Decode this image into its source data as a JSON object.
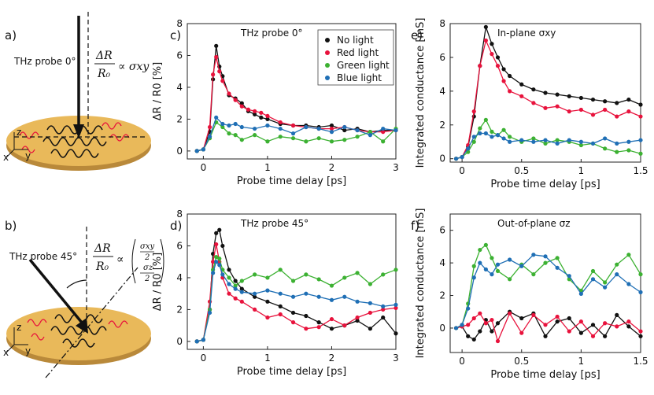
{
  "colors": {
    "black": "#111111",
    "red": "#e8123c",
    "green": "#3cb132",
    "blue": "#1f6fb5",
    "disk": "#e9b95a",
    "disk_edge": "#b9893a"
  },
  "panels": {
    "a": "a)",
    "b": "b)",
    "c": "c)",
    "d": "d)",
    "e": "e)",
    "f": "f)"
  },
  "schematic": {
    "a_probe": "THz probe 0°",
    "b_probe": "THz probe 45°",
    "a_formula": "ΔR/R₀ ∝ σxy",
    "b_formula": "ΔR/R₀ ∝ (σxy/2, σz/2)",
    "axis_z": "z",
    "axis_x": "x",
    "axis_y": "y"
  },
  "chart_data": [
    {
      "id": "c",
      "type": "line",
      "title": "THz probe 0°",
      "xlabel": "Probe time delay [ps]",
      "ylabel": "ΔR / R0 [%]",
      "xlim": [
        -0.25,
        3
      ],
      "ylim": [
        -0.5,
        8
      ],
      "xticks": [
        "0",
        "1",
        "2",
        "3"
      ],
      "yticks": [
        "0",
        "2",
        "4",
        "6",
        "8"
      ],
      "legend": [
        "No light",
        "Red light",
        "Green light",
        "Blue light"
      ],
      "series": [
        {
          "name": "No light",
          "color": "black",
          "x": [
            -0.1,
            0,
            0.1,
            0.15,
            0.2,
            0.25,
            0.3,
            0.4,
            0.5,
            0.6,
            0.7,
            0.8,
            0.9,
            1.0,
            1.2,
            1.4,
            1.6,
            1.8,
            2.0,
            2.2,
            2.4,
            2.6,
            2.8,
            3.0
          ],
          "y": [
            0,
            0.1,
            1.2,
            4.5,
            6.6,
            5.3,
            4.7,
            3.5,
            3.3,
            3.0,
            2.5,
            2.3,
            2.1,
            2.0,
            1.7,
            1.6,
            1.6,
            1.5,
            1.6,
            1.3,
            1.4,
            1.2,
            1.3,
            1.3
          ]
        },
        {
          "name": "Red light",
          "color": "red",
          "x": [
            -0.1,
            0,
            0.1,
            0.15,
            0.2,
            0.25,
            0.3,
            0.4,
            0.5,
            0.6,
            0.7,
            0.8,
            0.9,
            1.0,
            1.2,
            1.4,
            1.6,
            1.8,
            2.0,
            2.2,
            2.4,
            2.6,
            2.8,
            3.0
          ],
          "y": [
            0,
            0.1,
            1.5,
            4.8,
            5.9,
            5.0,
            4.4,
            3.6,
            3.2,
            2.8,
            2.6,
            2.5,
            2.4,
            2.2,
            1.8,
            1.6,
            1.5,
            1.4,
            1.4,
            1.5,
            1.3,
            1.2,
            1.2,
            1.3
          ]
        },
        {
          "name": "Green light",
          "color": "green",
          "x": [
            -0.1,
            0,
            0.1,
            0.2,
            0.3,
            0.4,
            0.5,
            0.6,
            0.8,
            1.0,
            1.2,
            1.4,
            1.6,
            1.8,
            2.0,
            2.2,
            2.4,
            2.6,
            2.8,
            3.0
          ],
          "y": [
            0,
            0.1,
            0.8,
            1.8,
            1.5,
            1.1,
            1.0,
            0.7,
            1.0,
            0.6,
            0.9,
            0.8,
            0.6,
            0.8,
            0.6,
            0.7,
            0.9,
            1.2,
            0.6,
            1.4
          ]
        },
        {
          "name": "Blue light",
          "color": "blue",
          "x": [
            -0.1,
            0,
            0.1,
            0.2,
            0.3,
            0.4,
            0.5,
            0.6,
            0.8,
            1.0,
            1.2,
            1.4,
            1.6,
            1.8,
            2.0,
            2.2,
            2.4,
            2.6,
            2.8,
            3.0
          ],
          "y": [
            0,
            0.1,
            0.9,
            2.1,
            1.7,
            1.6,
            1.7,
            1.5,
            1.4,
            1.6,
            1.4,
            1.1,
            1.5,
            1.4,
            1.2,
            1.5,
            1.3,
            1.0,
            1.4,
            1.3
          ]
        }
      ]
    },
    {
      "id": "d",
      "type": "line",
      "title": "THz probe 45°",
      "xlabel": "Probe time delay [ps]",
      "ylabel": "ΔR / R0 [%]",
      "xlim": [
        -0.25,
        3
      ],
      "ylim": [
        -0.5,
        8
      ],
      "xticks": [
        "0",
        "1",
        "2",
        "3"
      ],
      "yticks": [
        "0",
        "2",
        "4",
        "6",
        "8"
      ],
      "series": [
        {
          "name": "No light",
          "color": "black",
          "x": [
            -0.1,
            0,
            0.1,
            0.15,
            0.2,
            0.25,
            0.3,
            0.4,
            0.5,
            0.6,
            0.8,
            1.0,
            1.2,
            1.4,
            1.6,
            1.8,
            2.0,
            2.2,
            2.4,
            2.6,
            2.8,
            3.0
          ],
          "y": [
            0,
            0.1,
            2.0,
            5.5,
            6.8,
            7.0,
            6.0,
            4.5,
            3.8,
            3.3,
            2.8,
            2.5,
            2.2,
            1.8,
            1.6,
            1.2,
            0.8,
            1.0,
            1.3,
            0.8,
            1.5,
            0.5
          ]
        },
        {
          "name": "Red light",
          "color": "red",
          "x": [
            -0.1,
            0,
            0.1,
            0.15,
            0.2,
            0.25,
            0.3,
            0.4,
            0.5,
            0.6,
            0.8,
            1.0,
            1.2,
            1.4,
            1.6,
            1.8,
            2.0,
            2.2,
            2.4,
            2.6,
            2.8,
            3.0
          ],
          "y": [
            0,
            0.1,
            2.5,
            5.0,
            6.1,
            5.0,
            4.0,
            3.0,
            2.7,
            2.5,
            2.0,
            1.5,
            1.7,
            1.2,
            0.8,
            0.9,
            1.4,
            1.0,
            1.5,
            1.8,
            2.0,
            2.1
          ]
        },
        {
          "name": "Green light",
          "color": "green",
          "x": [
            -0.1,
            0,
            0.1,
            0.15,
            0.2,
            0.25,
            0.3,
            0.4,
            0.5,
            0.6,
            0.8,
            1.0,
            1.2,
            1.4,
            1.6,
            1.8,
            2.0,
            2.2,
            2.4,
            2.6,
            2.8,
            3.0
          ],
          "y": [
            0,
            0.1,
            2.0,
            4.5,
            5.3,
            5.2,
            4.5,
            4.0,
            3.5,
            3.8,
            4.2,
            4.0,
            4.5,
            3.8,
            4.2,
            3.9,
            3.5,
            4.0,
            4.3,
            3.6,
            4.2,
            4.5
          ]
        },
        {
          "name": "Blue light",
          "color": "blue",
          "x": [
            -0.1,
            0,
            0.1,
            0.15,
            0.2,
            0.25,
            0.3,
            0.4,
            0.5,
            0.6,
            0.8,
            1.0,
            1.2,
            1.4,
            1.6,
            1.8,
            2.0,
            2.2,
            2.4,
            2.6,
            2.8,
            3.0
          ],
          "y": [
            0,
            0.1,
            1.8,
            4.3,
            5.0,
            4.8,
            4.2,
            3.6,
            3.3,
            3.1,
            3.0,
            3.2,
            3.0,
            2.8,
            3.0,
            2.8,
            2.6,
            2.8,
            2.5,
            2.4,
            2.2,
            2.3
          ]
        }
      ]
    },
    {
      "id": "e",
      "type": "line",
      "title": "In-plane σxy",
      "xlabel": "Probe time delay [ps]",
      "ylabel": "Integrated conductance [mS]",
      "xlim": [
        -0.1,
        1.5
      ],
      "ylim": [
        -0.2,
        8
      ],
      "xticks": [
        "0",
        "0.5",
        "1",
        "1.5"
      ],
      "yticks": [
        "0",
        "2",
        "4",
        "6",
        "8"
      ],
      "series": [
        {
          "name": "No light",
          "color": "black",
          "x": [
            -0.05,
            0,
            0.05,
            0.1,
            0.15,
            0.2,
            0.25,
            0.3,
            0.35,
            0.4,
            0.5,
            0.6,
            0.7,
            0.8,
            0.9,
            1.0,
            1.1,
            1.2,
            1.3,
            1.4,
            1.5
          ],
          "y": [
            0,
            0.1,
            0.7,
            2.5,
            5.5,
            7.8,
            6.8,
            6.0,
            5.3,
            4.9,
            4.4,
            4.1,
            3.9,
            3.8,
            3.7,
            3.6,
            3.5,
            3.4,
            3.3,
            3.5,
            3.2
          ]
        },
        {
          "name": "Red light",
          "color": "red",
          "x": [
            -0.05,
            0,
            0.05,
            0.1,
            0.15,
            0.2,
            0.25,
            0.3,
            0.35,
            0.4,
            0.5,
            0.6,
            0.7,
            0.8,
            0.9,
            1.0,
            1.1,
            1.2,
            1.3,
            1.4,
            1.5
          ],
          "y": [
            0,
            0.1,
            0.8,
            2.8,
            5.5,
            7.0,
            6.2,
            5.5,
            4.6,
            4.0,
            3.7,
            3.3,
            3.0,
            3.1,
            2.8,
            2.9,
            2.6,
            2.9,
            2.5,
            2.8,
            2.5
          ]
        },
        {
          "name": "Green light",
          "color": "green",
          "x": [
            -0.05,
            0,
            0.05,
            0.1,
            0.15,
            0.2,
            0.25,
            0.3,
            0.35,
            0.4,
            0.5,
            0.6,
            0.7,
            0.8,
            0.9,
            1.0,
            1.1,
            1.2,
            1.3,
            1.4,
            1.5
          ],
          "y": [
            0,
            0.1,
            0.4,
            1.0,
            1.8,
            2.3,
            1.6,
            1.4,
            1.7,
            1.3,
            1.0,
            1.2,
            0.9,
            1.1,
            1.0,
            0.8,
            0.9,
            0.6,
            0.4,
            0.5,
            0.3
          ]
        },
        {
          "name": "Blue light",
          "color": "blue",
          "x": [
            -0.05,
            0,
            0.05,
            0.1,
            0.15,
            0.2,
            0.25,
            0.3,
            0.35,
            0.4,
            0.5,
            0.6,
            0.7,
            0.8,
            0.9,
            1.0,
            1.1,
            1.2,
            1.3,
            1.4,
            1.5
          ],
          "y": [
            0,
            0.1,
            0.6,
            1.3,
            1.5,
            1.5,
            1.3,
            1.4,
            1.2,
            1.0,
            1.1,
            1.0,
            1.1,
            0.9,
            1.1,
            1.0,
            0.9,
            1.2,
            0.9,
            1.0,
            1.1
          ]
        }
      ]
    },
    {
      "id": "f",
      "type": "line",
      "title": "Out-of-plane σz",
      "xlabel": "Probe time delay [ps]",
      "ylabel": "Integrated conductance [mS]",
      "xlim": [
        -0.1,
        1.5
      ],
      "ylim": [
        -1.5,
        7
      ],
      "xticks": [
        "0",
        "0.5",
        "1",
        "1.5"
      ],
      "yticks": [
        "0",
        "2",
        "4",
        "6"
      ],
      "series": [
        {
          "name": "No light",
          "color": "black",
          "x": [
            -0.05,
            0,
            0.05,
            0.1,
            0.15,
            0.2,
            0.25,
            0.3,
            0.4,
            0.5,
            0.6,
            0.7,
            0.8,
            0.9,
            1.0,
            1.1,
            1.2,
            1.3,
            1.4,
            1.5
          ],
          "y": [
            0,
            0.1,
            -0.5,
            -0.7,
            -0.2,
            0.5,
            -0.2,
            0.3,
            1.0,
            0.6,
            0.9,
            -0.5,
            0.4,
            0.6,
            -0.3,
            0.2,
            -0.5,
            0.8,
            0.1,
            -0.5
          ]
        },
        {
          "name": "Red light",
          "color": "red",
          "x": [
            -0.05,
            0,
            0.05,
            0.1,
            0.15,
            0.2,
            0.25,
            0.3,
            0.4,
            0.5,
            0.6,
            0.7,
            0.8,
            0.9,
            1.0,
            1.1,
            1.2,
            1.3,
            1.4,
            1.5
          ],
          "y": [
            0,
            0.1,
            0.2,
            0.6,
            0.9,
            0.3,
            0.5,
            -0.8,
            0.9,
            -0.3,
            0.8,
            0.2,
            0.7,
            -0.2,
            0.4,
            -0.5,
            0.3,
            0.1,
            0.4,
            -0.2
          ]
        },
        {
          "name": "Green light",
          "color": "green",
          "x": [
            -0.05,
            0,
            0.05,
            0.1,
            0.15,
            0.2,
            0.25,
            0.3,
            0.4,
            0.5,
            0.6,
            0.7,
            0.8,
            0.9,
            1.0,
            1.1,
            1.2,
            1.3,
            1.4,
            1.5
          ],
          "y": [
            0,
            0.2,
            1.5,
            3.8,
            4.8,
            5.1,
            4.3,
            3.5,
            3.0,
            3.9,
            3.3,
            4.0,
            4.3,
            3.0,
            2.3,
            3.5,
            2.8,
            3.9,
            4.5,
            3.3
          ]
        },
        {
          "name": "Blue light",
          "color": "blue",
          "x": [
            -0.05,
            0,
            0.05,
            0.1,
            0.15,
            0.2,
            0.25,
            0.3,
            0.4,
            0.5,
            0.6,
            0.7,
            0.8,
            0.9,
            1.0,
            1.1,
            1.2,
            1.3,
            1.4,
            1.5
          ],
          "y": [
            0,
            0.2,
            1.2,
            3.1,
            4.0,
            3.6,
            3.3,
            3.9,
            4.2,
            3.8,
            4.5,
            4.4,
            3.7,
            3.2,
            2.1,
            3.0,
            2.5,
            3.3,
            2.7,
            2.2
          ]
        }
      ]
    }
  ]
}
